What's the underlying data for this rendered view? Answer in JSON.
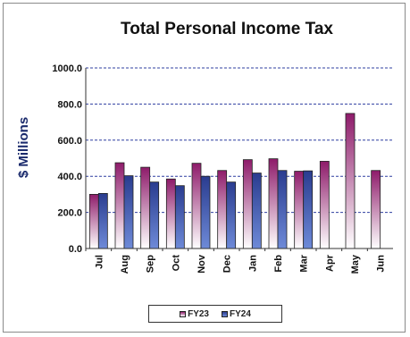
{
  "chart_data": {
    "type": "bar",
    "title": "Total Personal Income Tax",
    "ylabel": "$ Millions",
    "xlabel": "",
    "ylim": [
      0,
      1000
    ],
    "yticks": [
      "0.0",
      "200.0",
      "400.0",
      "600.0",
      "800.0",
      "1000.0"
    ],
    "categories": [
      "Jul",
      "Aug",
      "Sep",
      "Oct",
      "Nov",
      "Dec",
      "Jan",
      "Feb",
      "Mar",
      "Apr",
      "May",
      "Jun"
    ],
    "series": [
      {
        "name": "FY23",
        "values": [
          300,
          475,
          450,
          385,
          472,
          432,
          492,
          497,
          428,
          483,
          748,
          432
        ]
      },
      {
        "name": "FY24",
        "values": [
          305,
          403,
          368,
          348,
          400,
          368,
          418,
          432,
          430,
          null,
          null,
          null
        ]
      }
    ],
    "grid": true,
    "legend_position": "bottom",
    "colors": {
      "FY23": "#8e1b6a",
      "FY24": "#2a3c8f",
      "grid": "#2f3fa0"
    }
  }
}
